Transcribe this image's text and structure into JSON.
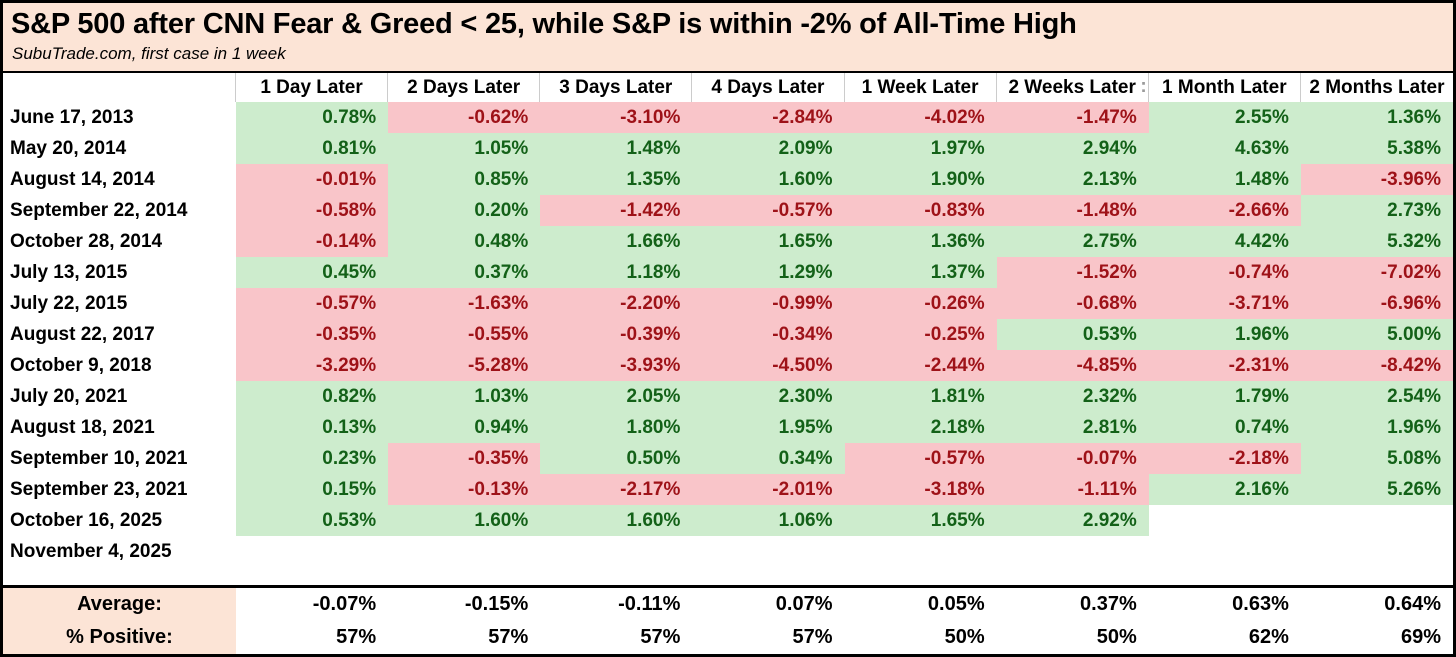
{
  "colors": {
    "title_bg": "#fce4d6",
    "green_bg": "#cdeccd",
    "green_text": "#136118",
    "red_bg": "#f9c5c9",
    "red_text": "#9e1218",
    "border": "#000000",
    "header_separator": "#cccccc",
    "overflow_artifact": "#9a9a9a"
  },
  "footer": {
    "average_label": "Average:",
    "percent_positive_label": "% Positive:"
  },
  "chart_data": {
    "type": "table",
    "title": "S&P 500 after CNN Fear & Greed < 25, while S&P is within -2% of All-Time High",
    "subtitle": "SubuTrade.com, first case in 1 week",
    "columns": [
      {
        "label": "1 Day Later"
      },
      {
        "label": "2 Days Later"
      },
      {
        "label": "3 Days Later"
      },
      {
        "label": "4 Days Later"
      },
      {
        "label": "1 Week Later"
      },
      {
        "label": "2 Weeks Later",
        "suffix_artifact": ":"
      },
      {
        "label": "1 Month Later"
      },
      {
        "label": "2 Months Later"
      }
    ],
    "rows": [
      {
        "date": "June 17, 2013",
        "values": [
          0.78,
          -0.62,
          -3.1,
          -2.84,
          -4.02,
          -1.47,
          2.55,
          1.36
        ]
      },
      {
        "date": "May 20, 2014",
        "values": [
          0.81,
          1.05,
          1.48,
          2.09,
          1.97,
          2.94,
          4.63,
          5.38
        ]
      },
      {
        "date": "August 14, 2014",
        "values": [
          -0.01,
          0.85,
          1.35,
          1.6,
          1.9,
          2.13,
          1.48,
          -3.96
        ]
      },
      {
        "date": "September 22, 2014",
        "values": [
          -0.58,
          0.2,
          -1.42,
          -0.57,
          -0.83,
          -1.48,
          -2.66,
          2.73
        ]
      },
      {
        "date": "October 28, 2014",
        "values": [
          -0.14,
          0.48,
          1.66,
          1.65,
          1.36,
          2.75,
          4.42,
          5.32
        ]
      },
      {
        "date": "July 13, 2015",
        "values": [
          0.45,
          0.37,
          1.18,
          1.29,
          1.37,
          -1.52,
          -0.74,
          -7.02
        ]
      },
      {
        "date": "July 22, 2015",
        "values": [
          -0.57,
          -1.63,
          -2.2,
          -0.99,
          -0.26,
          -0.68,
          -3.71,
          -6.96
        ]
      },
      {
        "date": "August 22, 2017",
        "values": [
          -0.35,
          -0.55,
          -0.39,
          -0.34,
          -0.25,
          0.53,
          1.96,
          5.0
        ]
      },
      {
        "date": "October 9, 2018",
        "values": [
          -3.29,
          -5.28,
          -3.93,
          -4.5,
          -2.44,
          -4.85,
          -2.31,
          -8.42
        ]
      },
      {
        "date": "July 20, 2021",
        "values": [
          0.82,
          1.03,
          2.05,
          2.3,
          1.81,
          2.32,
          1.79,
          2.54
        ]
      },
      {
        "date": "August 18, 2021",
        "values": [
          0.13,
          0.94,
          1.8,
          1.95,
          2.18,
          2.81,
          0.74,
          1.96
        ]
      },
      {
        "date": "September 10, 2021",
        "values": [
          0.23,
          -0.35,
          0.5,
          0.34,
          -0.57,
          -0.07,
          -2.18,
          5.08
        ]
      },
      {
        "date": "September 23, 2021",
        "values": [
          0.15,
          -0.13,
          -2.17,
          -2.01,
          -3.18,
          -1.11,
          2.16,
          5.26
        ]
      },
      {
        "date": "October 16, 2025",
        "values": [
          0.53,
          1.6,
          1.6,
          1.06,
          1.65,
          2.92,
          null,
          null
        ]
      },
      {
        "date": "November 4, 2025",
        "values": [
          null,
          null,
          null,
          null,
          null,
          null,
          null,
          null
        ]
      }
    ],
    "summary": {
      "average": [
        -0.07,
        -0.15,
        -0.11,
        0.07,
        0.05,
        0.37,
        0.63,
        0.64
      ],
      "percent_positive": [
        57,
        57,
        57,
        57,
        50,
        50,
        62,
        69
      ]
    },
    "layout_hints": {
      "positive_cells": "green background, dark green text",
      "negative_cells": "pink background, dark red text",
      "empty_cells": "white"
    }
  }
}
